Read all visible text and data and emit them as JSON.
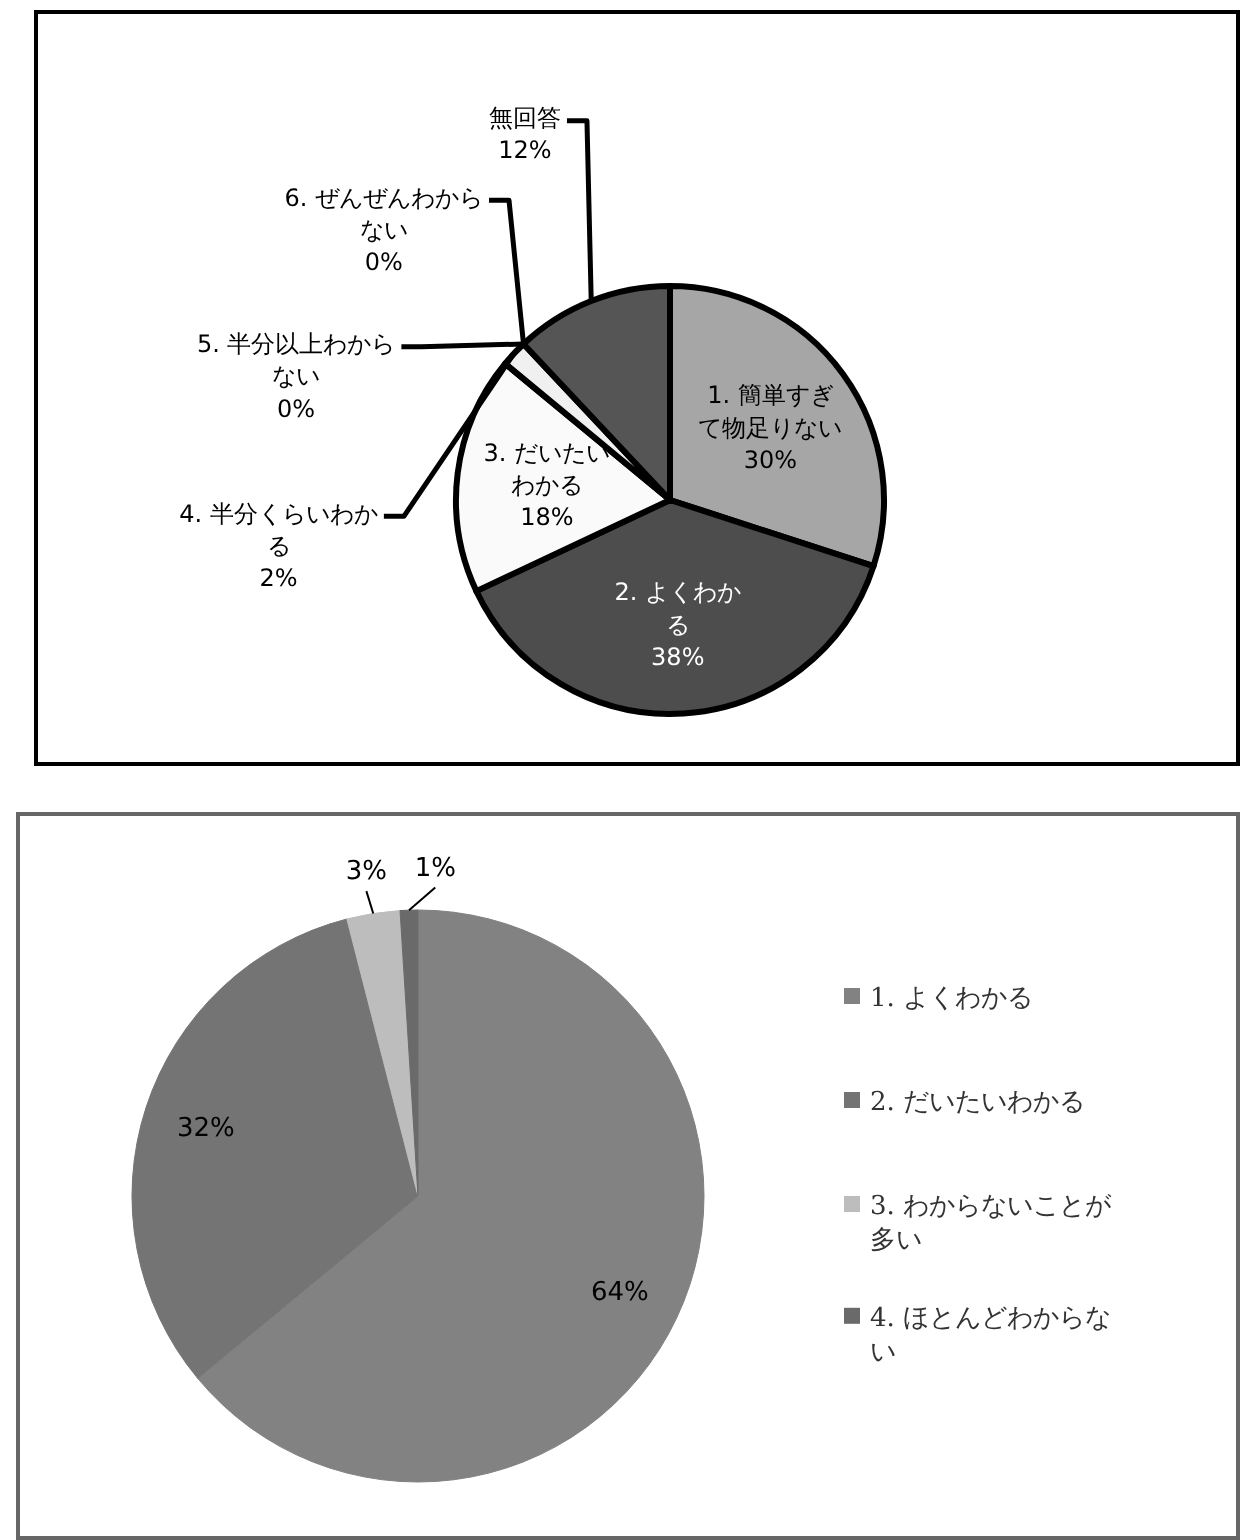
{
  "chart_data": [
    {
      "type": "pie",
      "categories": [
        "1. 簡単すぎて物足りない",
        "2. よくわかる",
        "3. だいたいわかる",
        "4. 半分くらいわかる",
        "5. 半分以上わからない",
        "6. ぜんぜんわからない",
        "無回答"
      ],
      "values": [
        30,
        38,
        18,
        2,
        0,
        0,
        12
      ],
      "colors": [
        "#a6a6a6",
        "#4d4d4d",
        "#fafafa",
        "#f0f0f0",
        "#e0e0e0",
        "#d0d0d0",
        "#555555"
      ],
      "value_labels": [
        "30%",
        "38%",
        "18%",
        "2%",
        "0%",
        "0%",
        "12%"
      ]
    },
    {
      "type": "pie",
      "categories": [
        "1. よくわかる",
        "2. だいたいわかる",
        "3. わからないことが多い",
        "4. ほとんどわからない"
      ],
      "values": [
        64,
        32,
        3,
        1
      ],
      "colors": [
        "#828282",
        "#747474",
        "#bdbdbd",
        "#6a6a6a"
      ],
      "value_labels": [
        "64%",
        "32%",
        "3%",
        "1%"
      ],
      "legend": "right"
    }
  ]
}
